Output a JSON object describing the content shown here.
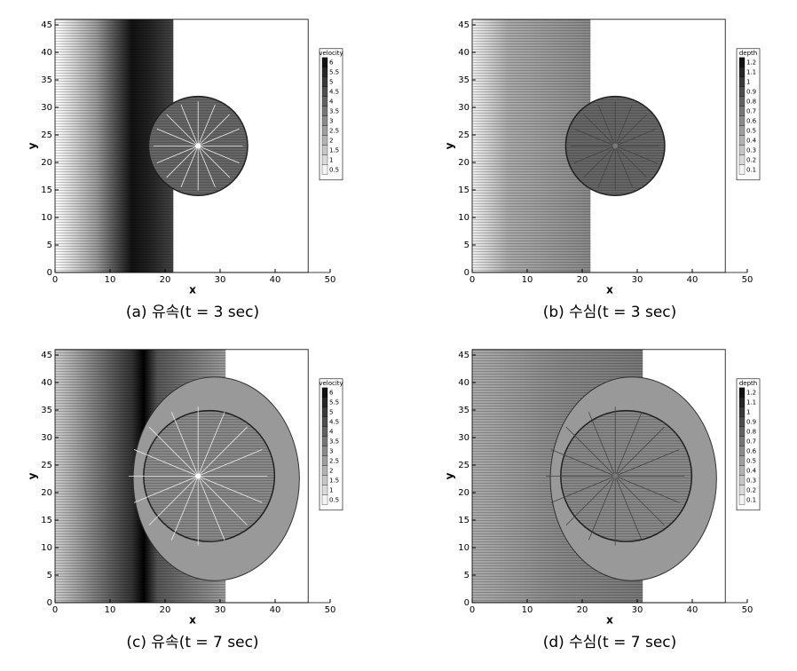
{
  "chart_data": [
    {
      "type": "contour",
      "caption": "(a) 유속(t = 3 sec)",
      "xlabel": "x",
      "ylabel": "y",
      "xlim": [
        0,
        50
      ],
      "xticks": [
        0,
        10,
        20,
        30,
        40,
        50
      ],
      "ylim": [
        0,
        46
      ],
      "yticks": [
        0,
        5,
        10,
        15,
        20,
        25,
        30,
        35,
        40,
        45
      ],
      "legend": {
        "title": "velocity",
        "levels": [
          6,
          5.5,
          5,
          4.5,
          4,
          3.5,
          3,
          2.5,
          2,
          1.5,
          1,
          0.5
        ],
        "colors": [
          "#111111",
          "#262626",
          "#3a3a3a",
          "#4e4e4e",
          "#626262",
          "#767676",
          "#8a8a8a",
          "#9e9e9e",
          "#b2b2b2",
          "#c6c6c6",
          "#dadada",
          "#f4f4f4"
        ]
      }
    },
    {
      "type": "contour",
      "caption": "(b) 수심(t = 3 sec)",
      "xlabel": "x",
      "ylabel": "y",
      "xlim": [
        0,
        50
      ],
      "xticks": [
        0,
        10,
        20,
        30,
        40,
        50
      ],
      "ylim": [
        0,
        46
      ],
      "yticks": [
        0,
        5,
        10,
        15,
        20,
        25,
        30,
        35,
        40,
        45
      ],
      "legend": {
        "title": "depth",
        "levels": [
          1.2,
          1.1,
          1,
          0.9,
          0.8,
          0.7,
          0.6,
          0.5,
          0.4,
          0.3,
          0.2,
          0.1
        ],
        "colors": [
          "#111111",
          "#262626",
          "#3a3a3a",
          "#4e4e4e",
          "#626262",
          "#767676",
          "#8a8a8a",
          "#9e9e9e",
          "#b2b2b2",
          "#c6c6c6",
          "#dadada",
          "#f4f4f4"
        ]
      }
    },
    {
      "type": "contour",
      "caption": "(c) 유속(t = 7 sec)",
      "xlabel": "x",
      "ylabel": "y",
      "xlim": [
        0,
        50
      ],
      "xticks": [
        0,
        10,
        20,
        30,
        40,
        50
      ],
      "ylim": [
        0,
        46
      ],
      "yticks": [
        0,
        5,
        10,
        15,
        20,
        25,
        30,
        35,
        40,
        45
      ],
      "legend": {
        "title": "velocity",
        "levels": [
          6,
          5.5,
          5,
          4.5,
          4,
          3.5,
          3,
          2.5,
          2,
          1.5,
          1,
          0.5
        ],
        "colors": [
          "#111111",
          "#262626",
          "#3a3a3a",
          "#4e4e4e",
          "#626262",
          "#767676",
          "#8a8a8a",
          "#9e9e9e",
          "#b2b2b2",
          "#c6c6c6",
          "#dadada",
          "#f4f4f4"
        ]
      }
    },
    {
      "type": "contour",
      "caption": "(d) 수심(t = 7 sec)",
      "xlabel": "x",
      "ylabel": "y",
      "xlim": [
        0,
        50
      ],
      "xticks": [
        0,
        10,
        20,
        30,
        40,
        50
      ],
      "ylim": [
        0,
        46
      ],
      "yticks": [
        0,
        5,
        10,
        15,
        20,
        25,
        30,
        35,
        40,
        45
      ],
      "legend": {
        "title": "depth",
        "levels": [
          1.2,
          1.1,
          1,
          0.9,
          0.8,
          0.7,
          0.6,
          0.5,
          0.4,
          0.3,
          0.2,
          0.1
        ],
        "colors": [
          "#111111",
          "#262626",
          "#3a3a3a",
          "#4e4e4e",
          "#626262",
          "#767676",
          "#8a8a8a",
          "#9e9e9e",
          "#b2b2b2",
          "#c6c6c6",
          "#dadada",
          "#f4f4f4"
        ]
      }
    }
  ]
}
